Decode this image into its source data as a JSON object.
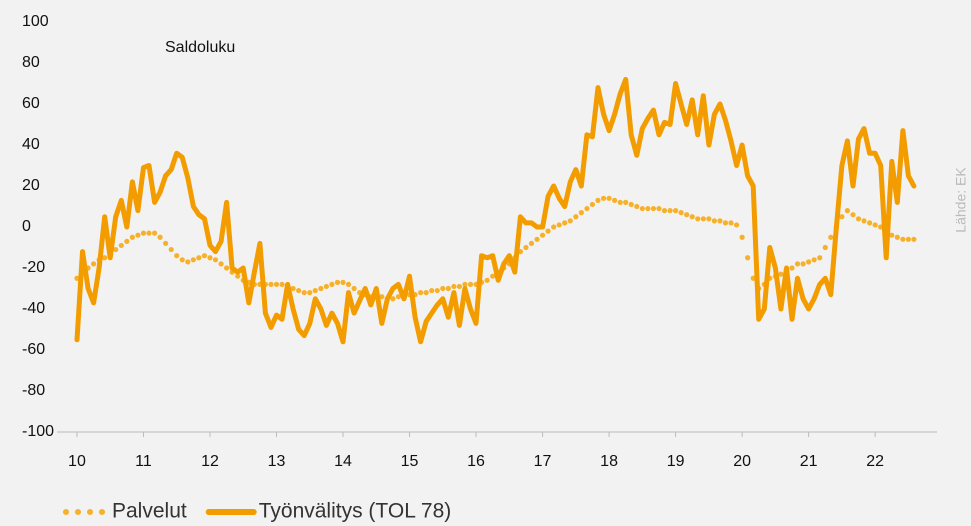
{
  "chart_data": {
    "type": "line",
    "annotations": [
      "Saldoluku"
    ],
    "source": "Lähde: EK",
    "xlim": [
      9.7,
      22.93
    ],
    "xticks": [
      10,
      11,
      12,
      13,
      14,
      15,
      16,
      17,
      18,
      19,
      20,
      21,
      22
    ],
    "ylim": [
      -100,
      100
    ],
    "yticks": [
      -100,
      -80,
      -60,
      -40,
      -20,
      0,
      20,
      40,
      60,
      80,
      100
    ],
    "grid": false,
    "legend": "bottom-left",
    "x": [
      10,
      10.083,
      10.167,
      10.25,
      10.333,
      10.417,
      10.5,
      10.583,
      10.667,
      10.75,
      10.833,
      10.917,
      11,
      11.083,
      11.167,
      11.25,
      11.333,
      11.417,
      11.5,
      11.583,
      11.667,
      11.75,
      11.833,
      11.917,
      12,
      12.083,
      12.167,
      12.25,
      12.333,
      12.417,
      12.5,
      12.583,
      12.667,
      12.75,
      12.833,
      12.917,
      13,
      13.083,
      13.167,
      13.25,
      13.333,
      13.417,
      13.5,
      13.583,
      13.667,
      13.75,
      13.833,
      13.917,
      14,
      14.083,
      14.167,
      14.25,
      14.333,
      14.417,
      14.5,
      14.583,
      14.667,
      14.75,
      14.833,
      14.917,
      15,
      15.083,
      15.167,
      15.25,
      15.333,
      15.417,
      15.5,
      15.583,
      15.667,
      15.75,
      15.833,
      15.917,
      16,
      16.083,
      16.167,
      16.25,
      16.333,
      16.417,
      16.5,
      16.583,
      16.667,
      16.75,
      16.833,
      16.917,
      17,
      17.083,
      17.167,
      17.25,
      17.333,
      17.417,
      17.5,
      17.583,
      17.667,
      17.75,
      17.833,
      17.917,
      18,
      18.083,
      18.167,
      18.25,
      18.333,
      18.417,
      18.5,
      18.583,
      18.667,
      18.75,
      18.833,
      18.917,
      19,
      19.083,
      19.167,
      19.25,
      19.333,
      19.417,
      19.5,
      19.583,
      19.667,
      19.75,
      19.833,
      19.917,
      20,
      20.083,
      20.167,
      20.25,
      20.333,
      20.417,
      20.5,
      20.583,
      20.667,
      20.75,
      20.833,
      20.917,
      21,
      21.083,
      21.167,
      21.25,
      21.333,
      21.417,
      21.5,
      21.583,
      21.667,
      21.75,
      21.833,
      21.917,
      22,
      22.083,
      22.167,
      22.25,
      22.333,
      22.417,
      22.5,
      22.583
    ],
    "series": [
      {
        "name": "Palvelut",
        "style": "dotted",
        "color": "#f7b02a",
        "values": [
          -25,
          -22,
          -20,
          -18,
          -16,
          -15,
          -13,
          -11,
          -9,
          -7,
          -5,
          -4,
          -3,
          -3,
          -3,
          -5,
          -8,
          -11,
          -14,
          -16,
          -17,
          -16,
          -15,
          -14,
          -15,
          -16,
          -18,
          -20,
          -22,
          -24,
          -26,
          -27,
          -28,
          -28,
          -28,
          -28,
          -28,
          -28,
          -29,
          -30,
          -31,
          -32,
          -32,
          -31,
          -30,
          -29,
          -28,
          -27,
          -27,
          -28,
          -30,
          -32,
          -33,
          -34,
          -34,
          -34,
          -35,
          -35,
          -34,
          -33,
          -33,
          -33,
          -32,
          -32,
          -31,
          -31,
          -30,
          -30,
          -29,
          -29,
          -28,
          -28,
          -28,
          -27,
          -26,
          -24,
          -22,
          -20,
          -18,
          -15,
          -12,
          -10,
          -8,
          -6,
          -4,
          -2,
          0,
          1,
          2,
          3,
          5,
          7,
          9,
          11,
          13,
          14,
          14,
          13,
          12,
          12,
          11,
          10,
          9,
          9,
          9,
          9,
          8,
          8,
          8,
          7,
          6,
          5,
          4,
          4,
          4,
          3,
          3,
          2,
          2,
          1,
          -5,
          -15,
          -25,
          -30,
          -28,
          -25,
          -24,
          -23,
          -22,
          -20,
          -18,
          -18,
          -17,
          -16,
          -15,
          -10,
          -5,
          0,
          5,
          8,
          6,
          4,
          3,
          2,
          1,
          0,
          -2,
          -4,
          -5,
          -6,
          -6,
          -6
        ]
      },
      {
        "name": "Työnvälitys (TOL 78)",
        "style": "solid",
        "color": "#f39c00",
        "values": [
          -55,
          -12,
          -30,
          -37,
          -20,
          5,
          -15,
          5,
          13,
          0,
          22,
          8,
          29,
          30,
          12,
          17,
          25,
          28,
          36,
          34,
          24,
          10,
          6,
          4,
          -9,
          -12,
          -7,
          12,
          -20,
          -22,
          -20,
          -37,
          -22,
          -8,
          -42,
          -49,
          -43,
          -45,
          -28,
          -40,
          -50,
          -53,
          -47,
          -35,
          -40,
          -48,
          -42,
          -47,
          -56,
          -32,
          -42,
          -36,
          -30,
          -38,
          -30,
          -47,
          -35,
          -30,
          -28,
          -35,
          -24,
          -44,
          -56,
          -46,
          -42,
          -38,
          -35,
          -44,
          -32,
          -48,
          -30,
          -40,
          -47,
          -14,
          -15,
          -14,
          -26,
          -18,
          -14,
          -22,
          5,
          2,
          2,
          0,
          0,
          15,
          20,
          14,
          10,
          22,
          28,
          20,
          45,
          44,
          68,
          55,
          47,
          55,
          65,
          72,
          45,
          35,
          48,
          53,
          57,
          45,
          51,
          50,
          70,
          60,
          50,
          62,
          45,
          64,
          40,
          55,
          60,
          52,
          42,
          30,
          40,
          25,
          20,
          -45,
          -40,
          -10,
          -20,
          -40,
          -20,
          -45,
          -25,
          -35,
          -40,
          -35,
          -28,
          -25,
          -33,
          0,
          30,
          42,
          20,
          43,
          48,
          36,
          36,
          30,
          -15,
          32,
          12,
          47,
          25,
          20
        ]
      }
    ]
  }
}
